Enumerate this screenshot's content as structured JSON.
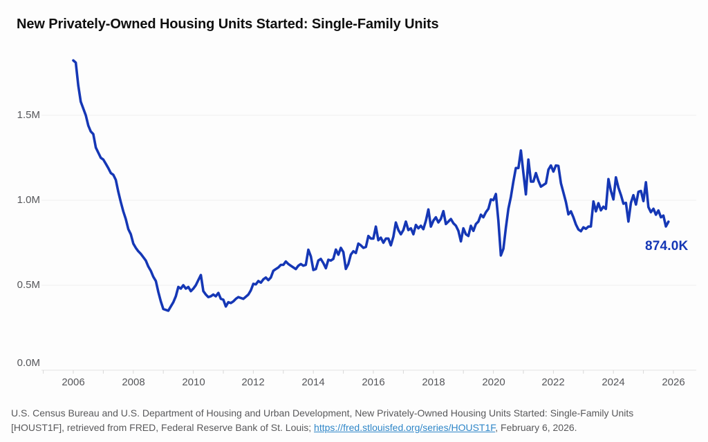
{
  "header": {
    "title": "New Privately-Owned Housing Units Started: Single-Family Units"
  },
  "footer": {
    "line1": "U.S. Census Bureau and U.S. Department of Housing and Urban Development, New Privately-Owned Housing Units Started: Single-Family Units",
    "line2_before_link": "[HOUST1F], retrieved from FRED, Federal Reserve Bank of St. Louis; ",
    "link_text": "https://fred.stlouisfed.org/series/HOUST1F",
    "line2_after_link": ", February 6, 2026."
  },
  "colors": {
    "line": "#1537b5",
    "end_label": "#1537b5",
    "grid": "#efefef",
    "axis_line": "#e2e2e2",
    "tick": "#d8d8d8",
    "axis_text": "#55565a",
    "footer_text": "#58585a",
    "link": "#2e86c8",
    "title": "#0f0f0f",
    "background": "#fdfdfd"
  },
  "chart_data": {
    "type": "line",
    "title": "New Privately-Owned Housing Units Started: Single-Family Units",
    "frequency": "monthly",
    "x_start": {
      "year": 2006,
      "month": 1
    },
    "x_end": {
      "year": 2025,
      "month": 11
    },
    "units_note": "values in thousands of units (K); axis shown in millions (M)",
    "ylim": [
      0,
      1840
    ],
    "grid": true,
    "legend": "none",
    "end_label": "874.0K",
    "end_value": 874.0,
    "y_tick_values": [
      0,
      500,
      1000,
      1500
    ],
    "y_tick_labels": [
      "0.0M",
      "0.5M",
      "1.0M",
      "1.5M"
    ],
    "x_tick_years": [
      2006,
      2008,
      2010,
      2012,
      2014,
      2016,
      2018,
      2020,
      2022,
      2024,
      2026
    ],
    "x_tick_labels": [
      "2006",
      "2008",
      "2010",
      "2012",
      "2014",
      "2016",
      "2018",
      "2020",
      "2022",
      "2024",
      "2026"
    ],
    "minor_tick_years_range": [
      2005,
      2026
    ],
    "values": [
      1823,
      1810,
      1676,
      1580,
      1540,
      1500,
      1440,
      1405,
      1390,
      1310,
      1280,
      1250,
      1240,
      1215,
      1190,
      1160,
      1150,
      1120,
      1050,
      990,
      935,
      890,
      830,
      800,
      745,
      720,
      700,
      685,
      665,
      645,
      610,
      585,
      550,
      525,
      460,
      405,
      360,
      355,
      350,
      375,
      400,
      435,
      490,
      480,
      500,
      480,
      490,
      465,
      480,
      500,
      530,
      560,
      465,
      445,
      430,
      435,
      445,
      435,
      455,
      420,
      415,
      375,
      400,
      395,
      405,
      420,
      430,
      425,
      420,
      432,
      445,
      470,
      508,
      505,
      525,
      515,
      535,
      545,
      530,
      545,
      585,
      595,
      605,
      620,
      620,
      640,
      625,
      615,
      605,
      595,
      615,
      625,
      615,
      620,
      709,
      670,
      590,
      595,
      645,
      655,
      630,
      600,
      650,
      645,
      655,
      710,
      680,
      720,
      695,
      596,
      625,
      680,
      700,
      690,
      745,
      735,
      720,
      725,
      790,
      775,
      775,
      845,
      765,
      780,
      750,
      775,
      775,
      735,
      785,
      869,
      825,
      800,
      825,
      875,
      825,
      835,
      800,
      855,
      835,
      850,
      830,
      880,
      946,
      845,
      880,
      900,
      870,
      890,
      936,
      860,
      875,
      890,
      865,
      850,
      820,
      758,
      835,
      800,
      790,
      850,
      820,
      860,
      875,
      915,
      900,
      930,
      950,
      1005,
      1001,
      1037,
      880,
      675,
      715,
      840,
      950,
      1020,
      1110,
      1190,
      1190,
      1293,
      1160,
      1035,
      1240,
      1110,
      1110,
      1160,
      1115,
      1080,
      1090,
      1100,
      1180,
      1205,
      1169,
      1205,
      1203,
      1100,
      1045,
      990,
      917,
      935,
      900,
      858,
      828,
      818,
      841,
      832,
      845,
      846,
      993,
      935,
      983,
      941,
      962,
      949,
      1125,
      1055,
      1005,
      1135,
      1075,
      1031,
      980,
      985,
      875,
      985,
      1030,
      975,
      1050,
      1055,
      995,
      1106,
      960,
      930,
      950,
      915,
      940,
      900,
      910,
      846,
      874
    ]
  }
}
